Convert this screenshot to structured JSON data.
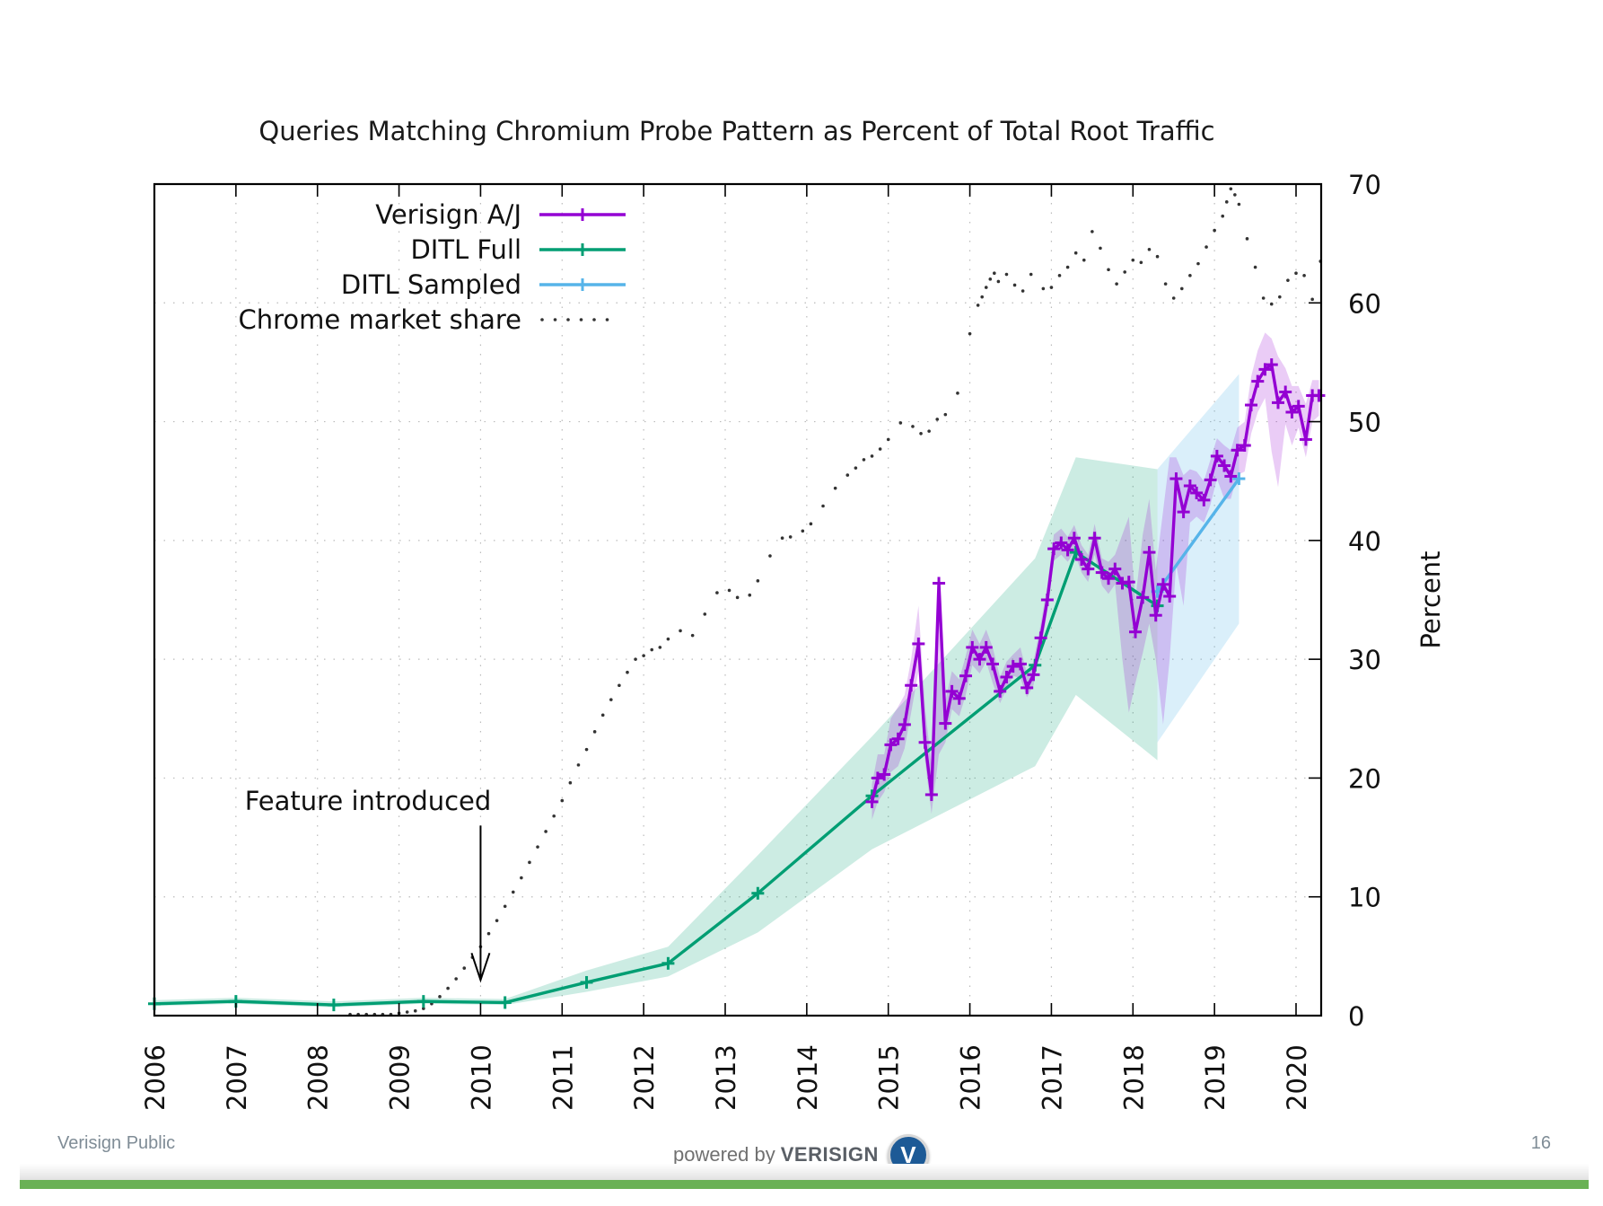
{
  "slide": {
    "footer_left": "Verisign Public",
    "footer_powered_prefix": "powered by",
    "footer_brand": "VERISIGN",
    "footer_logo_glyph": "V",
    "page_number": "16",
    "accent_bar_color": "#6ab155"
  },
  "chart_data": {
    "type": "line",
    "title": "Queries Matching Chromium Probe Pattern as Percent of Total Root Traffic",
    "xlabel": "",
    "ylabel": "Percent",
    "xlim": [
      2006,
      2020.31
    ],
    "ylim": [
      0,
      70
    ],
    "x_ticks": [
      "2006",
      "2007",
      "2008",
      "2009",
      "2010",
      "2011",
      "2012",
      "2013",
      "2014",
      "2015",
      "2016",
      "2017",
      "2018",
      "2019",
      "2020"
    ],
    "y_ticks": [
      "0",
      "10",
      "20",
      "30",
      "40",
      "50",
      "60",
      "70"
    ],
    "y_axis_side": "right",
    "grid": true,
    "legend_position": "top-left",
    "annotation": {
      "text": "Feature introduced",
      "arrow_x": 2010.0,
      "arrow_from_y": 16,
      "arrow_to_y": 3
    },
    "series": [
      {
        "name": "Verisign A/J",
        "color": "#9400d3",
        "style": "line-points",
        "x": [
          2014.8,
          2014.87,
          2014.95,
          2015.03,
          2015.12,
          2015.2,
          2015.28,
          2015.37,
          2015.45,
          2015.53,
          2015.62,
          2015.7,
          2015.78,
          2015.87,
          2015.95,
          2016.03,
          2016.12,
          2016.2,
          2016.28,
          2016.37,
          2016.45,
          2016.53,
          2016.62,
          2016.7,
          2016.78,
          2016.87,
          2016.95,
          2017.03,
          2017.12,
          2017.2,
          2017.28,
          2017.37,
          2017.45,
          2017.53,
          2017.62,
          2017.7,
          2017.78,
          2017.87,
          2017.95,
          2018.03,
          2018.12,
          2018.2,
          2018.28,
          2018.37,
          2018.45,
          2018.53,
          2018.62,
          2018.7,
          2018.78,
          2018.87,
          2018.95,
          2019.03,
          2019.12,
          2019.2,
          2019.28,
          2019.37,
          2019.45,
          2019.53,
          2019.62,
          2019.7,
          2019.78,
          2019.87,
          2019.95,
          2020.03,
          2020.12,
          2020.2,
          2020.28
        ],
        "y": [
          18.0,
          20.0,
          20.3,
          22.8,
          23.3,
          24.5,
          27.8,
          31.3,
          23.0,
          18.6,
          36.4,
          24.6,
          27.3,
          26.7,
          28.6,
          31.0,
          30.0,
          31.0,
          29.6,
          27.3,
          28.5,
          29.4,
          29.6,
          27.6,
          28.7,
          31.8,
          35.0,
          39.3,
          39.8,
          39.2,
          40.2,
          38.4,
          37.6,
          40.2,
          37.3,
          36.8,
          37.6,
          36.4,
          36.5,
          32.3,
          35.2,
          39.0,
          33.7,
          36.3,
          35.3,
          45.2,
          42.4,
          44.6,
          44.0,
          43.4,
          45.1,
          47.1,
          46.3,
          45.4,
          47.6,
          48.0,
          51.4,
          53.4,
          54.4,
          54.8,
          51.6,
          52.5,
          50.8,
          51.3,
          48.5,
          52.2,
          52.2
        ],
        "band_low": [
          16.5,
          18.0,
          18.8,
          20.5,
          21.0,
          22.5,
          25.5,
          29.0,
          21.5,
          17.0,
          22.0,
          23.0,
          25.8,
          25.2,
          27.0,
          29.5,
          28.8,
          29.8,
          28.0,
          26.3,
          27.5,
          28.6,
          28.4,
          26.8,
          27.8,
          30.8,
          34.0,
          38.3,
          38.8,
          38.2,
          39.0,
          37.3,
          36.5,
          38.8,
          36.2,
          35.5,
          36.3,
          30.0,
          25.5,
          28.0,
          30.5,
          33.0,
          30.0,
          24.5,
          30.0,
          38.0,
          34.5,
          41.5,
          42.0,
          41.5,
          43.0,
          45.2,
          43.5,
          43.5,
          45.5,
          45.8,
          49.0,
          50.8,
          52.0,
          47.5,
          44.5,
          49.8,
          48.0,
          49.5,
          47.0,
          50.0,
          50.5
        ],
        "band_high": [
          19.5,
          22.0,
          22.0,
          25.0,
          26.0,
          27.0,
          30.0,
          34.5,
          26.0,
          21.0,
          36.8,
          26.5,
          29.0,
          28.3,
          30.3,
          32.5,
          31.3,
          32.5,
          31.0,
          28.5,
          29.8,
          30.4,
          31.0,
          28.8,
          29.8,
          33.0,
          36.2,
          40.5,
          41.0,
          40.3,
          41.3,
          39.6,
          38.8,
          41.4,
          38.5,
          38.2,
          38.8,
          40.5,
          42.0,
          35.0,
          40.5,
          43.5,
          37.5,
          42.5,
          47.0,
          47.0,
          45.5,
          46.0,
          45.8,
          45.0,
          46.8,
          48.6,
          48.0,
          47.6,
          49.5,
          50.0,
          53.8,
          56.0,
          57.5,
          57.0,
          55.5,
          54.5,
          53.0,
          53.0,
          51.5,
          53.5,
          53.5
        ]
      },
      {
        "name": "DITL Full",
        "color": "#009e73",
        "style": "line-points",
        "x": [
          2006.0,
          2007.0,
          2008.2,
          2009.3,
          2010.3,
          2011.3,
          2012.3,
          2013.4,
          2014.8,
          2016.8,
          2017.3,
          2018.3
        ],
        "y": [
          1.0,
          1.2,
          0.9,
          1.2,
          1.1,
          2.8,
          4.4,
          10.3,
          18.5,
          29.5,
          39.0,
          34.5
        ],
        "band_low": [
          0.8,
          1.0,
          0.7,
          1.0,
          0.9,
          2.0,
          3.3,
          7.0,
          14.0,
          21.0,
          27.0,
          21.5
        ],
        "band_high": [
          1.3,
          1.5,
          1.2,
          1.5,
          1.4,
          3.8,
          5.8,
          13.5,
          23.5,
          38.5,
          47.0,
          46.0
        ]
      },
      {
        "name": "DITL Sampled",
        "color": "#56b4e9",
        "style": "line-points",
        "x": [
          2018.3,
          2019.3
        ],
        "y": [
          35.7,
          45.2
        ],
        "band_low": [
          23.0,
          33.0
        ],
        "band_high": [
          46.0,
          54.0
        ]
      },
      {
        "name": "Chrome market share",
        "color": "#333333",
        "style": "dots",
        "x": [
          2008.4,
          2008.5,
          2008.6,
          2008.7,
          2008.8,
          2008.9,
          2009.0,
          2009.1,
          2009.2,
          2009.3,
          2009.4,
          2009.5,
          2009.6,
          2009.7,
          2009.8,
          2009.9,
          2010.0,
          2010.1,
          2010.2,
          2010.3,
          2010.4,
          2010.5,
          2010.6,
          2010.7,
          2010.8,
          2010.9,
          2011.0,
          2011.1,
          2011.2,
          2011.3,
          2011.4,
          2011.5,
          2011.6,
          2011.7,
          2011.8,
          2011.9,
          2012.0,
          2012.1,
          2012.2,
          2012.3,
          2012.45,
          2012.6,
          2012.75,
          2012.9,
          2013.05,
          2013.15,
          2013.3,
          2013.4,
          2013.55,
          2013.7,
          2013.8,
          2013.95,
          2014.05,
          2014.2,
          2014.35,
          2014.5,
          2014.6,
          2014.7,
          2014.8,
          2014.9,
          2015.0,
          2015.15,
          2015.3,
          2015.4,
          2015.5,
          2015.6,
          2015.7,
          2015.85,
          2016.0,
          2016.1,
          2016.15,
          2016.2,
          2016.25,
          2016.3,
          2016.35,
          2016.45,
          2016.55,
          2016.65,
          2016.75,
          2016.9,
          2017.0,
          2017.1,
          2017.2,
          2017.3,
          2017.4,
          2017.5,
          2017.6,
          2017.7,
          2017.8,
          2017.9,
          2018.0,
          2018.1,
          2018.2,
          2018.3,
          2018.4,
          2018.5,
          2018.6,
          2018.7,
          2018.8,
          2018.9,
          2019.0,
          2019.1,
          2019.15,
          2019.2,
          2019.25,
          2019.3,
          2019.4,
          2019.5,
          2019.6,
          2019.7,
          2019.8,
          2019.9,
          2020.0,
          2020.1,
          2020.2,
          2020.3
        ],
        "y": [
          0.1,
          0.1,
          0.1,
          0.1,
          0.1,
          0.1,
          0.2,
          0.3,
          0.4,
          0.6,
          1.0,
          1.6,
          2.3,
          3.1,
          4.0,
          4.9,
          5.8,
          6.9,
          8.0,
          9.2,
          10.4,
          11.6,
          12.9,
          14.2,
          15.5,
          16.8,
          18.1,
          19.6,
          21.1,
          22.4,
          23.9,
          25.3,
          26.6,
          27.8,
          28.9,
          30.0,
          30.3,
          30.8,
          31.0,
          31.7,
          32.4,
          32.0,
          33.8,
          35.6,
          35.8,
          35.2,
          35.4,
          36.6,
          38.7,
          40.2,
          40.3,
          40.8,
          41.4,
          42.9,
          44.4,
          45.5,
          46.1,
          46.8,
          47.1,
          47.7,
          48.5,
          49.9,
          49.6,
          49.0,
          49.2,
          50.2,
          50.6,
          52.4,
          57.4,
          59.8,
          60.5,
          61.3,
          62.0,
          62.5,
          61.8,
          62.4,
          61.5,
          61.0,
          62.4,
          61.2,
          61.3,
          62.3,
          63.0,
          64.2,
          63.6,
          66.0,
          64.6,
          62.8,
          61.6,
          62.6,
          63.6,
          63.4,
          64.5,
          63.9,
          61.6,
          60.4,
          61.2,
          62.3,
          63.3,
          64.7,
          66.1,
          67.3,
          68.5,
          69.6,
          69.1,
          68.3,
          65.4,
          63.0,
          60.4,
          59.9,
          60.5,
          61.9,
          62.5,
          62.3,
          60.3,
          63.5
        ]
      }
    ]
  }
}
